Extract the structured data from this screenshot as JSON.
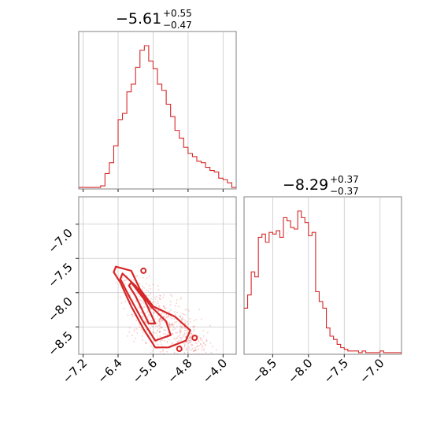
{
  "chart_data": [
    {
      "panel": "marginal-x",
      "type": "histogram",
      "title": {
        "median": "−5.61",
        "plus": "+0.55",
        "minus": "−0.47"
      },
      "color": "#d62728",
      "xlim": [
        -7.3,
        -3.7
      ],
      "bin_edges": [
        -7.3,
        -7.2,
        -7.1,
        -7.0,
        -6.9,
        -6.8,
        -6.7,
        -6.6,
        -6.5,
        -6.4,
        -6.3,
        -6.2,
        -6.1,
        -6.0,
        -5.9,
        -5.8,
        -5.7,
        -5.6,
        -5.5,
        -5.4,
        -5.3,
        -5.2,
        -5.1,
        -5.0,
        -4.9,
        -4.8,
        -4.7,
        -4.6,
        -4.5,
        -4.4,
        -4.3,
        -4.2,
        -4.1,
        -4.0,
        -3.9,
        -3.8,
        -3.7
      ],
      "counts": [
        1,
        1,
        1,
        1,
        1,
        2,
        10,
        17,
        28,
        45,
        49,
        63,
        68,
        79,
        90,
        93,
        83,
        78,
        68,
        64,
        55,
        47,
        38,
        33,
        27,
        23,
        21,
        18,
        17,
        14,
        12,
        11,
        7,
        6,
        4,
        1
      ]
    },
    {
      "panel": "joint",
      "type": "contour-scatter",
      "color": "#d62728",
      "xlim": [
        -7.3,
        -3.7
      ],
      "ylim": [
        -8.9,
        -6.6
      ],
      "xticks": [
        "−7.2",
        "−6.4",
        "−5.6",
        "−4.8",
        "−4.0"
      ],
      "yticks": [
        "−7.0",
        "−7.5",
        "−8.0",
        "−8.5"
      ],
      "contour_outer": [
        [
          -6.45,
          -7.62
        ],
        [
          -6.1,
          -7.68
        ],
        [
          -5.9,
          -7.95
        ],
        [
          -5.6,
          -8.2
        ],
        [
          -5.1,
          -8.35
        ],
        [
          -4.75,
          -8.55
        ],
        [
          -4.85,
          -8.7
        ],
        [
          -5.25,
          -8.8
        ],
        [
          -5.55,
          -8.8
        ],
        [
          -5.8,
          -8.55
        ],
        [
          -6.1,
          -8.2
        ],
        [
          -6.35,
          -7.85
        ],
        [
          -6.5,
          -7.7
        ]
      ],
      "contour_mid": [
        [
          -6.3,
          -7.72
        ],
        [
          -6.0,
          -7.9
        ],
        [
          -5.65,
          -8.2
        ],
        [
          -5.3,
          -8.42
        ],
        [
          -5.2,
          -8.62
        ],
        [
          -5.55,
          -8.7
        ],
        [
          -5.85,
          -8.4
        ],
        [
          -6.15,
          -8.05
        ],
        [
          -6.35,
          -7.8
        ]
      ],
      "contour_inner": [
        [
          -6.1,
          -7.85
        ],
        [
          -5.8,
          -8.1
        ],
        [
          -5.55,
          -8.45
        ],
        [
          -5.7,
          -8.45
        ],
        [
          -6.0,
          -8.05
        ],
        [
          -6.15,
          -7.9
        ]
      ],
      "islands": [
        [
          -5.0,
          -8.82
        ],
        [
          -4.65,
          -8.66
        ],
        [
          -5.82,
          -7.68
        ]
      ]
    },
    {
      "panel": "marginal-y",
      "type": "histogram",
      "title": {
        "median": "−8.29",
        "plus": "+0.37",
        "minus": "−0.37"
      },
      "color": "#d62728",
      "xlim": [
        -8.9,
        -6.7
      ],
      "xticks": [
        "−8.5",
        "−8.0",
        "−7.5",
        "−7.0"
      ],
      "bin_edges": [
        -8.9,
        -8.85,
        -8.8,
        -8.75,
        -8.7,
        -8.65,
        -8.6,
        -8.55,
        -8.5,
        -8.45,
        -8.4,
        -8.35,
        -8.3,
        -8.25,
        -8.2,
        -8.15,
        -8.1,
        -8.05,
        -8.0,
        -7.95,
        -7.9,
        -7.85,
        -7.8,
        -7.75,
        -7.7,
        -7.65,
        -7.6,
        -7.55,
        -7.5,
        -7.45,
        -7.4,
        -7.35,
        -7.3,
        -7.25,
        -7.2,
        -7.15,
        -7.1,
        -7.05,
        -7.0,
        -6.95,
        -6.9,
        -6.85,
        -6.8,
        -6.75,
        -6.7
      ],
      "counts": [
        28,
        36,
        50,
        47,
        71,
        73,
        68,
        74,
        73,
        75,
        71,
        83,
        81,
        77,
        76,
        87,
        83,
        80,
        72,
        74,
        38,
        32,
        28,
        16,
        11,
        9,
        6,
        4,
        3,
        2,
        2,
        2,
        1,
        2,
        1,
        1,
        1,
        1,
        2,
        1,
        1,
        1,
        1,
        1
      ]
    }
  ]
}
